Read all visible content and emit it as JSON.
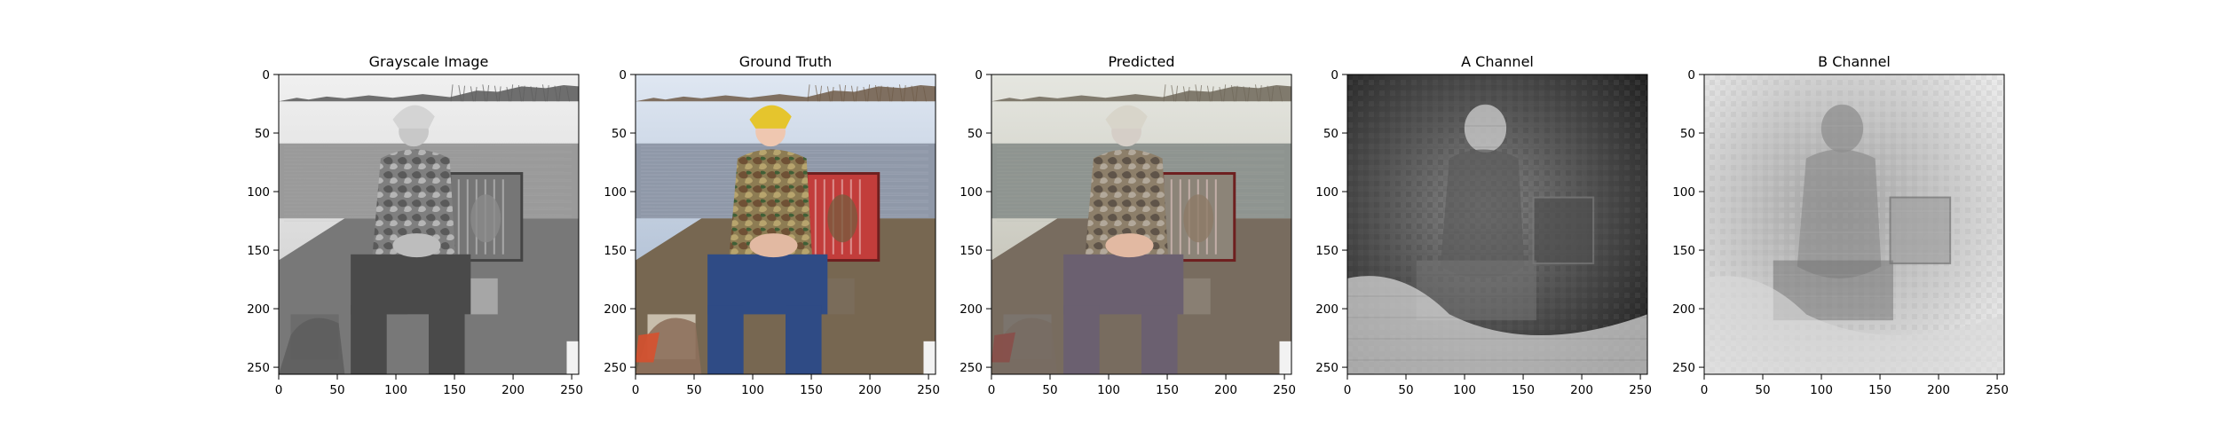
{
  "figure": {
    "panels": [
      {
        "id": "grayscale",
        "title": "Grayscale Image",
        "image": {
          "mode": "grayscale",
          "description_key": "boy-in-camo-on-boat-with-dog-crate"
        },
        "x_ticks": [
          "0",
          "50",
          "100",
          "150",
          "200",
          "250"
        ],
        "y_ticks": [
          "0",
          "50",
          "100",
          "150",
          "200",
          "250"
        ]
      },
      {
        "id": "ground-truth",
        "title": "Ground Truth",
        "image": {
          "mode": "color",
          "description_key": "boy-in-camo-on-boat-with-dog-crate"
        },
        "x_ticks": [
          "0",
          "50",
          "100",
          "150",
          "200",
          "250"
        ],
        "y_ticks": [
          "0",
          "50",
          "100",
          "150",
          "200",
          "250"
        ]
      },
      {
        "id": "predicted",
        "title": "Predicted",
        "image": {
          "mode": "desaturated-color",
          "description_key": "boy-in-camo-on-boat-with-dog-crate"
        },
        "x_ticks": [
          "0",
          "50",
          "100",
          "150",
          "200",
          "250"
        ],
        "y_ticks": [
          "0",
          "50",
          "100",
          "150",
          "200",
          "250"
        ]
      },
      {
        "id": "a-channel",
        "title": "A Channel",
        "image": {
          "mode": "dark-channel-map",
          "description_key": "boy-in-camo-on-boat-with-dog-crate"
        },
        "x_ticks": [
          "0",
          "50",
          "100",
          "150",
          "200",
          "250"
        ],
        "y_ticks": [
          "0",
          "50",
          "100",
          "150",
          "200",
          "250"
        ]
      },
      {
        "id": "b-channel",
        "title": "B Channel",
        "image": {
          "mode": "light-channel-map",
          "description_key": "boy-in-camo-on-boat-with-dog-crate"
        },
        "x_ticks": [
          "0",
          "50",
          "100",
          "150",
          "200",
          "250"
        ],
        "y_ticks": [
          "0",
          "50",
          "100",
          "150",
          "200",
          "250"
        ]
      }
    ],
    "axis_extent": {
      "x_min": 0,
      "x_max": 256,
      "y_min": 0,
      "y_max": 256
    },
    "colors": {
      "background": "#ffffff",
      "axis": "#000000",
      "sky_gray": "#d8d8d8",
      "water_gray": "#9a9a9a",
      "tree_gray": "#5f5f5f",
      "boat_gray": "#787878",
      "sky_blue": "#b8c8dc",
      "water_blue": "#8f98a8",
      "trees_brown": "#6e5b47",
      "shirt_camo": "#8e7d56",
      "jeans_blue": "#2f4b85",
      "hat_yellow": "#e5c52d",
      "crate_red": "#c23d3b",
      "boat_brown": "#776751",
      "channel_dark": "#2d2d2d",
      "channel_light": "#e7e7e7"
    }
  }
}
